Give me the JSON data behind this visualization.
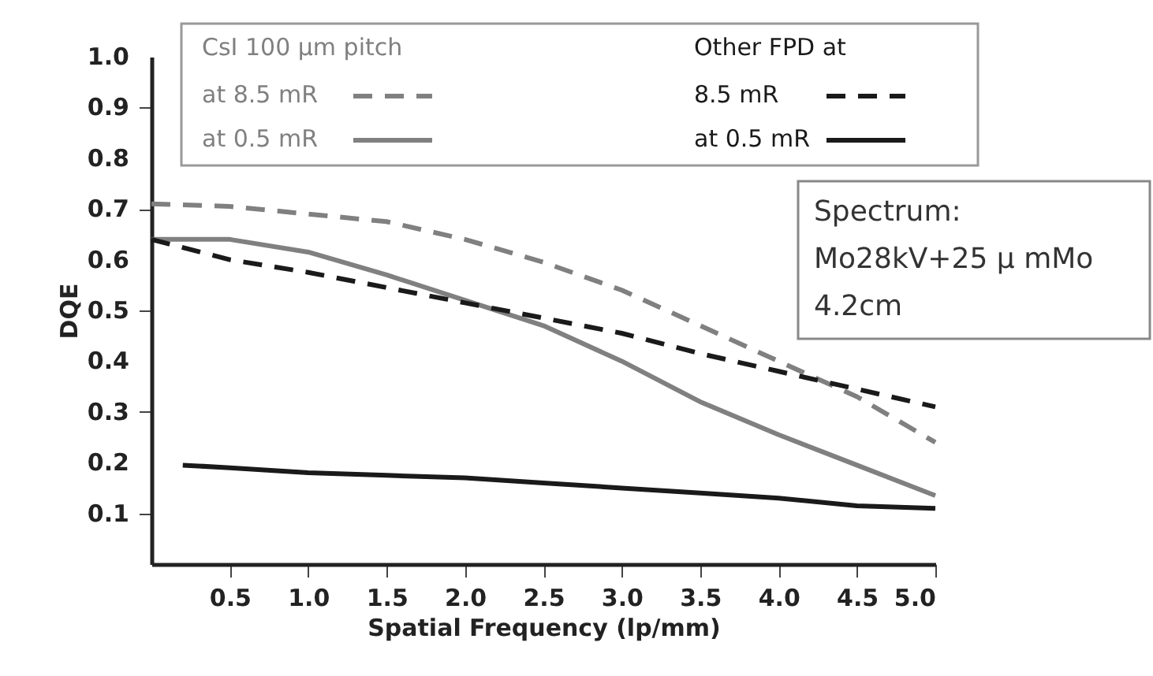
{
  "chart_data": {
    "type": "line",
    "xlabel": "Spatial Frequency (lp/mm)",
    "ylabel": "DQE",
    "annotations": [
      "CsI  100 µm pitch",
      "Other FPD at",
      "Spectrum:",
      "Mo28kV+25 μ mMo",
      "4.2cm"
    ],
    "xlim": [
      0,
      5.0
    ],
    "ylim": [
      0,
      1.0
    ],
    "xticks": [
      0.5,
      {
        "value": 1,
        "label": "1.0"
      },
      1.5,
      {
        "value": 2,
        "label": "2.0"
      },
      2.5,
      {
        "value": 3,
        "label": "3.0"
      },
      3.5,
      {
        "value": 4,
        "label": "4.0"
      },
      4.5,
      {
        "value": 5,
        "label": "5.0"
      }
    ],
    "yticks": [
      0.1,
      0.2,
      0.3,
      0.4,
      0.5,
      0.6,
      0.7,
      0.8,
      0.9,
      {
        "value": 1,
        "label": "1.0"
      }
    ],
    "grid": false,
    "legend": "top",
    "marker": "none",
    "series": [
      {
        "name": "at 8.5 mR",
        "color": "#808080",
        "line_style": "dashed",
        "x": [
          0,
          0.5,
          1.0,
          1.5,
          2.0,
          2.5,
          3.0,
          3.5,
          4.0,
          4.5,
          5.0
        ],
        "values": [
          0.71,
          0.705,
          0.69,
          0.675,
          0.64,
          0.595,
          0.54,
          0.47,
          0.4,
          0.33,
          0.24
        ]
      },
      {
        "name": "at 0.5 mR",
        "color": "#808080",
        "line_style": "solid",
        "x": [
          0,
          0.5,
          1.0,
          1.5,
          2.0,
          2.5,
          3.0,
          3.5,
          4.0,
          4.5,
          5.0
        ],
        "values": [
          0.64,
          0.64,
          0.615,
          0.57,
          0.52,
          0.47,
          0.4,
          0.32,
          0.255,
          0.195,
          0.135
        ]
      },
      {
        "name": "8.5 mR",
        "color": "#1a1a1a",
        "line_style": "dashed",
        "x": [
          0,
          0.5,
          1.0,
          1.5,
          2.0,
          2.5,
          3.0,
          3.5,
          4.0,
          4.5,
          5.0
        ],
        "values": [
          0.64,
          0.6,
          0.575,
          0.545,
          0.515,
          0.485,
          0.455,
          0.415,
          0.38,
          0.345,
          0.31
        ]
      },
      {
        "name": "at 0.5 mR",
        "color": "#1a1a1a",
        "line_style": "solid",
        "x": [
          0.2,
          0.5,
          1.0,
          1.5,
          2.0,
          2.5,
          3.0,
          3.5,
          4.0,
          4.5,
          5.0
        ],
        "values": [
          0.195,
          0.19,
          0.18,
          0.175,
          0.17,
          0.16,
          0.15,
          0.14,
          0.13,
          0.115,
          0.11
        ]
      }
    ]
  }
}
